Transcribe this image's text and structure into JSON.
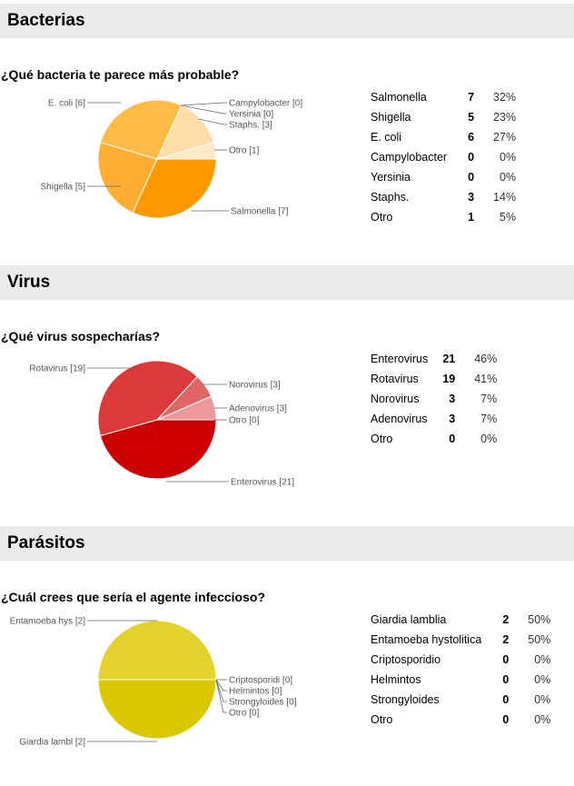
{
  "sections": [
    {
      "title": "Bacterias",
      "question": "¿Qué bacteria te parece más probable?",
      "pie_labels": [
        "Salmonella [7]",
        "Shigella [5]",
        "E. coli [6]",
        "Campylobacter [0]",
        "Yersinia [0]",
        "Staphs. [3]",
        "Otro [1]"
      ],
      "rows": [
        {
          "label": "Salmonella",
          "count": "7",
          "pct": "32%"
        },
        {
          "label": "Shigella",
          "count": "5",
          "pct": "23%"
        },
        {
          "label": "E. coli",
          "count": "6",
          "pct": "27%"
        },
        {
          "label": "Campylobacter",
          "count": "0",
          "pct": "0%"
        },
        {
          "label": "Yersinia",
          "count": "0",
          "pct": "0%"
        },
        {
          "label": "Staphs.",
          "count": "3",
          "pct": "14%"
        },
        {
          "label": "Otro",
          "count": "1",
          "pct": "5%"
        }
      ]
    },
    {
      "title": "Virus",
      "question": "¿Qué virus sospecharías?",
      "pie_labels": [
        "Enterovirus [21]",
        "Rotavirus [19]",
        "Norovirus [3]",
        "Adenovirus [3]",
        "Otro [0]"
      ],
      "rows": [
        {
          "label": "Enterovirus",
          "count": "21",
          "pct": "46%"
        },
        {
          "label": "Rotavirus",
          "count": "19",
          "pct": "41%"
        },
        {
          "label": "Norovirus",
          "count": "3",
          "pct": "7%"
        },
        {
          "label": "Adenovirus",
          "count": "3",
          "pct": "7%"
        },
        {
          "label": "Otro",
          "count": "0",
          "pct": "0%"
        }
      ]
    },
    {
      "title": "Parásitos",
      "question": "¿Cuál crees que sería el agente infeccioso?",
      "pie_labels": [
        "Giardia lambl [2]",
        "Entamoeba hys [2]",
        "Criptosporidi [0]",
        "Helmintos [0]",
        "Strongyloides [0]",
        "Otro [0]"
      ],
      "rows": [
        {
          "label": "Giardia lamblia",
          "count": "2",
          "pct": "50%"
        },
        {
          "label": "Entamoeba hystolitica",
          "count": "2",
          "pct": "50%"
        },
        {
          "label": "Criptosporidio",
          "count": "0",
          "pct": "0%"
        },
        {
          "label": "Helmintos",
          "count": "0",
          "pct": "0%"
        },
        {
          "label": "Strongyloides",
          "count": "0",
          "pct": "0%"
        },
        {
          "label": "Otro",
          "count": "0",
          "pct": "0%"
        }
      ]
    }
  ],
  "chart_data": [
    {
      "type": "pie",
      "categories": [
        "Salmonella",
        "Shigella",
        "E. coli",
        "Campylobacter",
        "Yersinia",
        "Staphs.",
        "Otro"
      ],
      "values": [
        7,
        5,
        6,
        0,
        0,
        3,
        1
      ],
      "colors": [
        "#ff9900",
        "#ffad33",
        "#ffbb44",
        "#ffcc88",
        "#ffd699",
        "#ffdda8",
        "#ffe9c7"
      ]
    },
    {
      "type": "pie",
      "categories": [
        "Enterovirus",
        "Rotavirus",
        "Norovirus",
        "Adenovirus",
        "Otro"
      ],
      "values": [
        21,
        19,
        3,
        3,
        0
      ],
      "colors": [
        "#cc0000",
        "#dc3a3a",
        "#e06666",
        "#ec9999",
        "#f4c0c0"
      ]
    },
    {
      "type": "pie",
      "categories": [
        "Giardia lamblia",
        "Entamoeba hystolitica",
        "Criptosporidio",
        "Helmintos",
        "Strongyloides",
        "Otro"
      ],
      "values": [
        2,
        2,
        0,
        0,
        0,
        0
      ],
      "colors": [
        "#dbc800",
        "#e3d22c",
        "#eadd66",
        "#efe488",
        "#f3ebaa",
        "#f7f2cc"
      ]
    }
  ]
}
